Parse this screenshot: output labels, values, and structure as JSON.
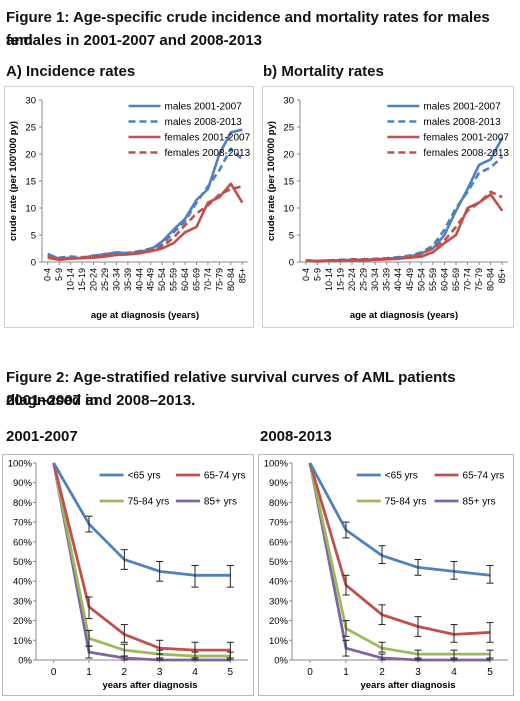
{
  "figure1": {
    "title_line1": "Figure 1: Age-specific crude incidence and mortality rates for males and",
    "title_line2": "females in 2001-2007 and 2008-2013"
  },
  "figure2": {
    "title_line1": "Figure 2: Age-stratified relative survival curves of AML patients diagnosed in",
    "title_line2": "2001–2007 and 2008–2013."
  },
  "colors": {
    "blue": "#4F81BD",
    "red": "#C0504D",
    "green": "#9BBB59",
    "purple": "#8064A2"
  },
  "chart_data": [
    {
      "type": "line",
      "panel_title": "A) Incidence rates",
      "xlabel": "age at diagnosis (years)",
      "ylabel": "crude rate (per 100'000 py)",
      "ylim": [
        0,
        30
      ],
      "yticks": [
        0,
        5,
        10,
        15,
        20,
        25,
        30
      ],
      "categories": [
        "0-4",
        "5-9",
        "10-14",
        "15-19",
        "20-24",
        "25-29",
        "30-34",
        "35-39",
        "40-44",
        "45-49",
        "50-54",
        "55-59",
        "60-64",
        "65-69",
        "70-74",
        "75-79",
        "80-84",
        "85+"
      ],
      "legend_position": "top-right",
      "series": [
        {
          "name": "males 2001-2007",
          "color": "blue",
          "dash": false,
          "values": [
            1.5,
            0.6,
            0.8,
            0.7,
            1.2,
            1.4,
            1.8,
            1.6,
            1.9,
            2.3,
            3.8,
            6.0,
            8.0,
            11.5,
            13.5,
            20.0,
            24.0,
            24.5
          ]
        },
        {
          "name": "males 2008-2013",
          "color": "blue",
          "dash": true,
          "values": [
            1.2,
            0.8,
            1.0,
            0.9,
            1.0,
            1.5,
            1.6,
            1.7,
            2.0,
            2.5,
            3.2,
            5.5,
            7.5,
            11.0,
            14.0,
            17.0,
            21.0,
            19.0
          ]
        },
        {
          "name": "females 2001-2007",
          "color": "red",
          "dash": false,
          "values": [
            0.8,
            0.4,
            0.6,
            0.7,
            0.8,
            1.0,
            1.3,
            1.4,
            1.6,
            2.0,
            2.5,
            3.5,
            5.5,
            6.5,
            11.0,
            12.0,
            14.5,
            11.0
          ]
        },
        {
          "name": "females 2008-2013",
          "color": "red",
          "dash": true,
          "values": [
            1.0,
            0.6,
            0.7,
            0.8,
            1.0,
            1.2,
            1.4,
            1.5,
            1.8,
            2.2,
            2.8,
            4.5,
            6.8,
            9.0,
            10.5,
            12.5,
            13.5,
            14.0
          ]
        }
      ]
    },
    {
      "type": "line",
      "panel_title": "b) Mortality rates",
      "xlabel": "age at diagnosis (years)",
      "ylabel": "crude rate (per 100'000 py)",
      "ylim": [
        0,
        30
      ],
      "yticks": [
        0,
        5,
        10,
        15,
        20,
        25,
        30
      ],
      "categories": [
        "0-4",
        "5-9",
        "10-14",
        "15-19",
        "20-24",
        "25-29",
        "30-34",
        "35-39",
        "40-44",
        "45-49",
        "50-54",
        "55-59",
        "60-64",
        "65-69",
        "70-74",
        "75-79",
        "80-84",
        "85+"
      ],
      "legend_position": "top-right",
      "series": [
        {
          "name": "males 2001-2007",
          "color": "blue",
          "dash": false,
          "values": [
            0.2,
            0.2,
            0.3,
            0.3,
            0.4,
            0.4,
            0.5,
            0.6,
            0.8,
            1.0,
            1.6,
            2.5,
            5.0,
            9.5,
            13.5,
            18.0,
            19.0,
            23.0
          ]
        },
        {
          "name": "males 2008-2013",
          "color": "blue",
          "dash": true,
          "values": [
            0.3,
            0.2,
            0.3,
            0.4,
            0.4,
            0.5,
            0.6,
            0.7,
            0.9,
            1.2,
            1.8,
            3.0,
            6.0,
            10.0,
            13.0,
            16.5,
            17.5,
            19.5
          ]
        },
        {
          "name": "females 2001-2007",
          "color": "red",
          "dash": false,
          "values": [
            0.2,
            0.1,
            0.2,
            0.3,
            0.3,
            0.3,
            0.4,
            0.5,
            0.6,
            0.8,
            1.0,
            1.8,
            3.5,
            5.0,
            10.0,
            11.0,
            12.5,
            9.5
          ]
        },
        {
          "name": "females 2008-2013",
          "color": "red",
          "dash": true,
          "values": [
            0.3,
            0.2,
            0.3,
            0.3,
            0.5,
            0.5,
            0.5,
            0.6,
            0.7,
            1.0,
            1.5,
            2.5,
            4.0,
            6.5,
            9.5,
            11.0,
            13.0,
            12.0
          ]
        }
      ]
    },
    {
      "type": "line",
      "panel_title": "2001-2007",
      "xlabel": "years after diagnosis",
      "xticks": [
        0,
        1,
        2,
        3,
        4,
        5
      ],
      "yticks": [
        "0%",
        "10%",
        "20%",
        "30%",
        "40%",
        "50%",
        "60%",
        "70%",
        "80%",
        "90%",
        "100%"
      ],
      "ylim": [
        0,
        100
      ],
      "xlim": [
        -0.5,
        5.5
      ],
      "legend_position": "top-right",
      "series": [
        {
          "name": "<65 yrs",
          "color": "blue",
          "x": [
            0,
            1,
            2,
            3,
            4,
            5
          ],
          "values": [
            100,
            69,
            51,
            45,
            43,
            43
          ],
          "err_low": [
            null,
            65,
            46,
            40,
            37,
            37
          ],
          "err_high": [
            null,
            73,
            56,
            50,
            48,
            48
          ]
        },
        {
          "name": "65-74 yrs",
          "color": "red",
          "x": [
            0,
            1,
            2,
            3,
            4,
            5
          ],
          "values": [
            100,
            27,
            13,
            6,
            5,
            5
          ],
          "err_low": [
            null,
            21,
            9,
            3,
            1,
            1
          ],
          "err_high": [
            null,
            32,
            18,
            10,
            9,
            9
          ]
        },
        {
          "name": "75-84 yrs",
          "color": "green",
          "x": [
            0,
            1,
            2,
            3,
            4,
            5
          ],
          "values": [
            100,
            11,
            5,
            3,
            2,
            2
          ],
          "err_low": [
            null,
            7,
            2,
            1,
            0,
            0
          ],
          "err_high": [
            null,
            15,
            8,
            5,
            4,
            4
          ]
        },
        {
          "name": "85+ yrs",
          "color": "purple",
          "x": [
            0,
            1,
            2,
            3,
            4,
            5
          ],
          "values": [
            100,
            4,
            1,
            0,
            0,
            0
          ],
          "err_low": [
            null,
            1,
            0,
            0,
            0,
            0
          ],
          "err_high": [
            null,
            7,
            2,
            1,
            1,
            1
          ]
        }
      ]
    },
    {
      "type": "line",
      "panel_title": "2008-2013",
      "xlabel": "years after diagnosis",
      "xticks": [
        0,
        1,
        2,
        3,
        4,
        5
      ],
      "yticks": [
        "0%",
        "10%",
        "20%",
        "30%",
        "40%",
        "50%",
        "60%",
        "70%",
        "80%",
        "90%",
        "100%"
      ],
      "ylim": [
        0,
        100
      ],
      "xlim": [
        -0.5,
        5.5
      ],
      "legend_position": "top-right",
      "series": [
        {
          "name": "<65 yrs",
          "color": "blue",
          "x": [
            0,
            1,
            2,
            3,
            4,
            5
          ],
          "values": [
            100,
            66,
            53,
            47,
            45,
            43
          ],
          "err_low": [
            null,
            62,
            49,
            43,
            41,
            39
          ],
          "err_high": [
            null,
            70,
            58,
            51,
            50,
            48
          ]
        },
        {
          "name": "65-74 yrs",
          "color": "red",
          "x": [
            0,
            1,
            2,
            3,
            4,
            5
          ],
          "values": [
            100,
            38,
            23,
            17,
            13,
            14
          ],
          "err_low": [
            null,
            33,
            18,
            12,
            9,
            9
          ],
          "err_high": [
            null,
            43,
            28,
            22,
            18,
            19
          ]
        },
        {
          "name": "75-84 yrs",
          "color": "green",
          "x": [
            0,
            1,
            2,
            3,
            4,
            5
          ],
          "values": [
            100,
            16,
            6,
            3,
            3,
            3
          ],
          "err_low": [
            null,
            12,
            4,
            1,
            1,
            1
          ],
          "err_high": [
            null,
            20,
            9,
            5,
            5,
            5
          ]
        },
        {
          "name": "85+ yrs",
          "color": "purple",
          "x": [
            0,
            1,
            2,
            3,
            4,
            5
          ],
          "values": [
            100,
            6,
            1,
            0,
            0,
            0
          ],
          "err_low": [
            null,
            2,
            0,
            0,
            0,
            0
          ],
          "err_high": [
            null,
            10,
            3,
            1,
            1,
            1
          ]
        }
      ]
    }
  ]
}
